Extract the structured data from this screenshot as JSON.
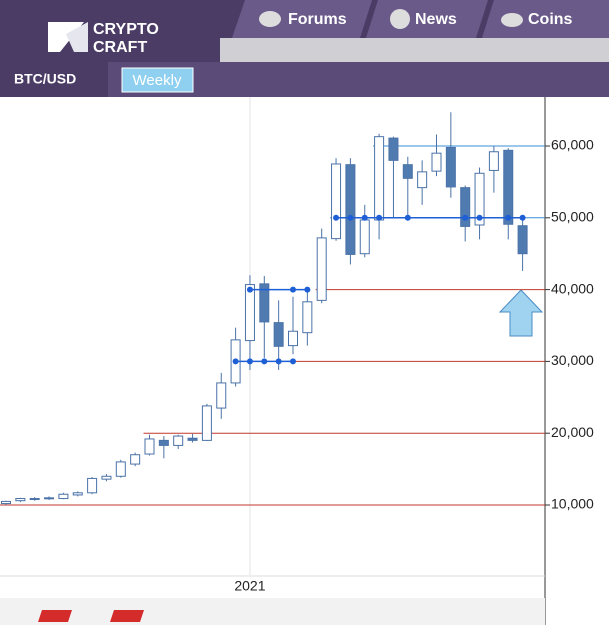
{
  "header": {
    "logo": [
      "CRYPTO",
      "CRAFT"
    ],
    "tabs": [
      "Forums",
      "News",
      "Coins"
    ]
  },
  "toolbar": {
    "symbol": "BTC/USD",
    "timeframe": "Weekly"
  },
  "chart_data": {
    "type": "candlestick",
    "categories": [
      null,
      null,
      null,
      null,
      null,
      null,
      null,
      null,
      null,
      null,
      null,
      null,
      null,
      null,
      null,
      null,
      null,
      "2021",
      null,
      null,
      null,
      null,
      null,
      null,
      null,
      null,
      null,
      null,
      null,
      null,
      null,
      null,
      null,
      null,
      null,
      null,
      null
    ],
    "open": [
      10200,
      10600,
      10800,
      10900,
      10900,
      11400,
      11700,
      13600,
      14000,
      15700,
      17100,
      19000,
      18300,
      19300,
      19000,
      23500,
      27000,
      32900,
      40800,
      35400,
      32200,
      34000,
      38500,
      47100,
      57400,
      45000,
      49700,
      61100,
      57400,
      54200,
      56500,
      59800,
      54200,
      49000,
      56600,
      59400,
      48900
    ],
    "high": [
      10600,
      11000,
      11100,
      11200,
      11700,
      11900,
      13900,
      14300,
      16300,
      17300,
      19800,
      19600,
      19800,
      19900,
      24100,
      28400,
      34700,
      42000,
      41900,
      38500,
      39000,
      40200,
      48500,
      58300,
      58300,
      51800,
      61700,
      61300,
      58500,
      58000,
      61600,
      64700,
      54500,
      57000,
      60000,
      59700,
      50300
    ],
    "low": [
      10000,
      10400,
      10600,
      10700,
      10800,
      11200,
      11500,
      13300,
      13800,
      15400,
      16900,
      16500,
      17800,
      18700,
      18900,
      22000,
      26500,
      28800,
      30500,
      28800,
      31000,
      32200,
      38100,
      46800,
      43500,
      44500,
      47000,
      50000,
      50000,
      51800,
      55800,
      52800,
      46700,
      47000,
      53500,
      47000,
      42600
    ],
    "close": [
      10500,
      10900,
      10900,
      11000,
      11500,
      11700,
      13700,
      14000,
      16000,
      17000,
      19200,
      18300,
      19600,
      19000,
      23800,
      27000,
      33000,
      40700,
      35500,
      32100,
      34200,
      38300,
      47200,
      57500,
      44900,
      49700,
      61300,
      58000,
      55500,
      56400,
      59000,
      54300,
      48800,
      56200,
      59200,
      49100,
      45000
    ],
    "up_color": "#ffffff",
    "down_color": "#4f7bb0",
    "edge_color": "#4a72a8",
    "ylim": [
      250,
      66825
    ],
    "yticks": [
      {
        "value": 10000,
        "label": "10,000"
      },
      {
        "value": 20000,
        "label": "20,000"
      },
      {
        "value": 30000,
        "label": "30,000"
      },
      {
        "value": 40000,
        "label": "40,000"
      },
      {
        "value": 50000,
        "label": "50,000"
      },
      {
        "value": 60000,
        "label": "60,000"
      }
    ],
    "levels": [
      {
        "value": 10000,
        "color": "#c0392b",
        "start": 0
      },
      {
        "value": 20000,
        "color": "#c0392b",
        "start": 10
      },
      {
        "value": 30000,
        "color": "#c0392b",
        "start": 20
      },
      {
        "value": 40000,
        "color": "#c0392b",
        "start": 22
      },
      {
        "value": 50000,
        "color": "#3a8fd6",
        "start": 23
      },
      {
        "value": 60000,
        "color": "#3a8fd6",
        "start": 26
      }
    ],
    "markers": {
      "color": "#1f5fd6",
      "x": [
        16,
        17,
        18,
        19,
        20,
        17,
        20,
        21,
        23,
        24,
        25,
        26,
        28,
        32,
        33,
        35,
        36
      ],
      "y": [
        30000,
        30000,
        30000,
        30000,
        30000,
        40000,
        40000,
        40000,
        50000,
        50000,
        50000,
        50000,
        50000,
        50000,
        50000,
        50000,
        50000
      ]
    }
  }
}
